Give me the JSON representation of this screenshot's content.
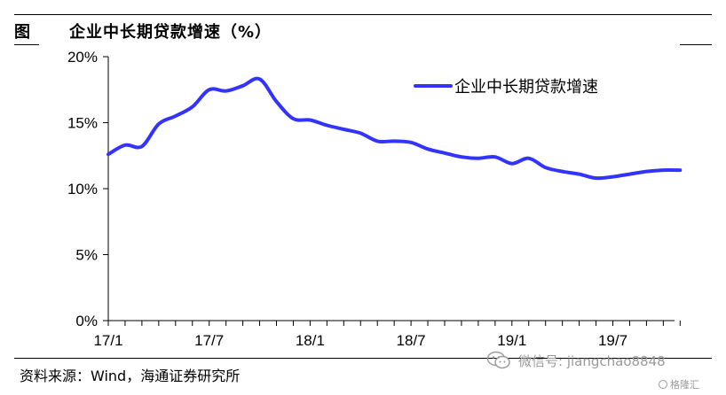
{
  "header": {
    "figure_label": "图",
    "title": "企业中长期贷款增速（%）"
  },
  "footer": {
    "source": "资料来源：Wind，海通证券研究所",
    "wechat": "微信号: jiangchao8848",
    "brand": "格隆汇"
  },
  "colors": {
    "line": "#3333ff",
    "axis": "#000000"
  },
  "chart_data": {
    "type": "line",
    "title": "企业中长期贷款增速（%）",
    "xlabel": "",
    "ylabel": "",
    "ylim": [
      0,
      20
    ],
    "yticks": [
      "0%",
      "5%",
      "10%",
      "15%",
      "20%"
    ],
    "ytick_values": [
      0,
      5,
      10,
      15,
      20
    ],
    "xticks": [
      "17/1",
      "17/7",
      "18/1",
      "18/7",
      "19/1",
      "19/7"
    ],
    "grid": false,
    "legend_position": "top-right",
    "x": [
      "17/1",
      "17/2",
      "17/3",
      "17/4",
      "17/5",
      "17/6",
      "17/7",
      "17/8",
      "17/9",
      "17/10",
      "17/11",
      "17/12",
      "18/1",
      "18/2",
      "18/3",
      "18/4",
      "18/5",
      "18/6",
      "18/7",
      "18/8",
      "18/9",
      "18/10",
      "18/11",
      "18/12",
      "19/1",
      "19/2",
      "19/3",
      "19/4",
      "19/5",
      "19/6",
      "19/7",
      "19/8",
      "19/9",
      "19/10",
      "19/11"
    ],
    "series": [
      {
        "name": "企业中长期贷款增速",
        "values": [
          12.6,
          13.3,
          13.2,
          14.9,
          15.5,
          16.2,
          17.5,
          17.4,
          17.8,
          18.3,
          16.6,
          15.3,
          15.2,
          14.8,
          14.5,
          14.2,
          13.6,
          13.6,
          13.5,
          13.0,
          12.7,
          12.4,
          12.3,
          12.4,
          11.9,
          12.3,
          11.6,
          11.3,
          11.1,
          10.8,
          10.9,
          11.1,
          11.3,
          11.4,
          11.4
        ]
      }
    ]
  }
}
